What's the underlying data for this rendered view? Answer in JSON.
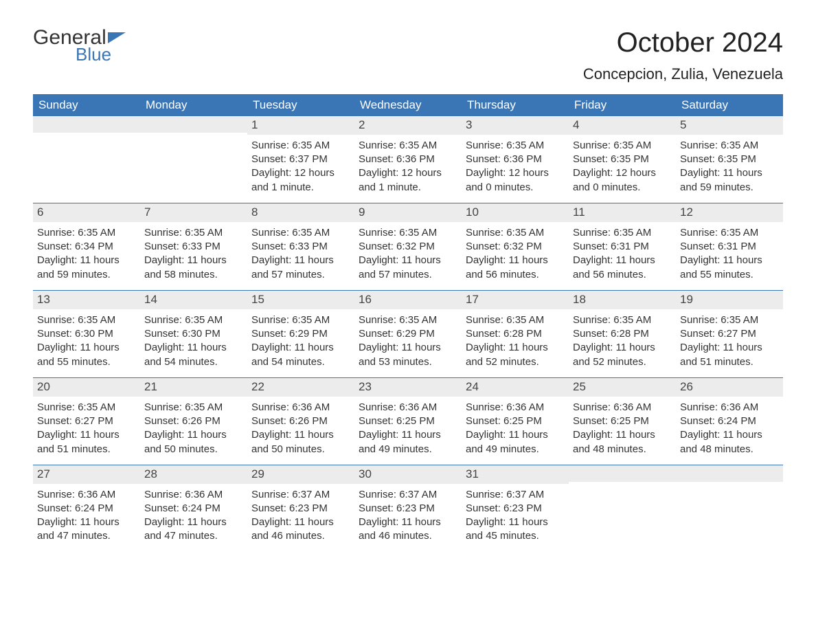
{
  "logo": {
    "text_general": "General",
    "text_blue": "Blue"
  },
  "header": {
    "month_title": "October 2024",
    "location": "Concepcion, Zulia, Venezuela"
  },
  "colors": {
    "header_bg": "#3a75b6",
    "daynum_bg": "#ececec",
    "page_bg": "#ffffff",
    "text": "#333333"
  },
  "weekday_labels": [
    "Sunday",
    "Monday",
    "Tuesday",
    "Wednesday",
    "Thursday",
    "Friday",
    "Saturday"
  ],
  "weeks": [
    [
      {
        "blank": true
      },
      {
        "blank": true
      },
      {
        "n": "1",
        "sunrise": "Sunrise: 6:35 AM",
        "sunset": "Sunset: 6:37 PM",
        "d1": "Daylight: 12 hours",
        "d2": "and 1 minute."
      },
      {
        "n": "2",
        "sunrise": "Sunrise: 6:35 AM",
        "sunset": "Sunset: 6:36 PM",
        "d1": "Daylight: 12 hours",
        "d2": "and 1 minute."
      },
      {
        "n": "3",
        "sunrise": "Sunrise: 6:35 AM",
        "sunset": "Sunset: 6:36 PM",
        "d1": "Daylight: 12 hours",
        "d2": "and 0 minutes."
      },
      {
        "n": "4",
        "sunrise": "Sunrise: 6:35 AM",
        "sunset": "Sunset: 6:35 PM",
        "d1": "Daylight: 12 hours",
        "d2": "and 0 minutes."
      },
      {
        "n": "5",
        "sunrise": "Sunrise: 6:35 AM",
        "sunset": "Sunset: 6:35 PM",
        "d1": "Daylight: 11 hours",
        "d2": "and 59 minutes."
      }
    ],
    [
      {
        "n": "6",
        "sunrise": "Sunrise: 6:35 AM",
        "sunset": "Sunset: 6:34 PM",
        "d1": "Daylight: 11 hours",
        "d2": "and 59 minutes."
      },
      {
        "n": "7",
        "sunrise": "Sunrise: 6:35 AM",
        "sunset": "Sunset: 6:33 PM",
        "d1": "Daylight: 11 hours",
        "d2": "and 58 minutes."
      },
      {
        "n": "8",
        "sunrise": "Sunrise: 6:35 AM",
        "sunset": "Sunset: 6:33 PM",
        "d1": "Daylight: 11 hours",
        "d2": "and 57 minutes."
      },
      {
        "n": "9",
        "sunrise": "Sunrise: 6:35 AM",
        "sunset": "Sunset: 6:32 PM",
        "d1": "Daylight: 11 hours",
        "d2": "and 57 minutes."
      },
      {
        "n": "10",
        "sunrise": "Sunrise: 6:35 AM",
        "sunset": "Sunset: 6:32 PM",
        "d1": "Daylight: 11 hours",
        "d2": "and 56 minutes."
      },
      {
        "n": "11",
        "sunrise": "Sunrise: 6:35 AM",
        "sunset": "Sunset: 6:31 PM",
        "d1": "Daylight: 11 hours",
        "d2": "and 56 minutes."
      },
      {
        "n": "12",
        "sunrise": "Sunrise: 6:35 AM",
        "sunset": "Sunset: 6:31 PM",
        "d1": "Daylight: 11 hours",
        "d2": "and 55 minutes."
      }
    ],
    [
      {
        "n": "13",
        "sunrise": "Sunrise: 6:35 AM",
        "sunset": "Sunset: 6:30 PM",
        "d1": "Daylight: 11 hours",
        "d2": "and 55 minutes."
      },
      {
        "n": "14",
        "sunrise": "Sunrise: 6:35 AM",
        "sunset": "Sunset: 6:30 PM",
        "d1": "Daylight: 11 hours",
        "d2": "and 54 minutes."
      },
      {
        "n": "15",
        "sunrise": "Sunrise: 6:35 AM",
        "sunset": "Sunset: 6:29 PM",
        "d1": "Daylight: 11 hours",
        "d2": "and 54 minutes."
      },
      {
        "n": "16",
        "sunrise": "Sunrise: 6:35 AM",
        "sunset": "Sunset: 6:29 PM",
        "d1": "Daylight: 11 hours",
        "d2": "and 53 minutes."
      },
      {
        "n": "17",
        "sunrise": "Sunrise: 6:35 AM",
        "sunset": "Sunset: 6:28 PM",
        "d1": "Daylight: 11 hours",
        "d2": "and 52 minutes."
      },
      {
        "n": "18",
        "sunrise": "Sunrise: 6:35 AM",
        "sunset": "Sunset: 6:28 PM",
        "d1": "Daylight: 11 hours",
        "d2": "and 52 minutes."
      },
      {
        "n": "19",
        "sunrise": "Sunrise: 6:35 AM",
        "sunset": "Sunset: 6:27 PM",
        "d1": "Daylight: 11 hours",
        "d2": "and 51 minutes."
      }
    ],
    [
      {
        "n": "20",
        "sunrise": "Sunrise: 6:35 AM",
        "sunset": "Sunset: 6:27 PM",
        "d1": "Daylight: 11 hours",
        "d2": "and 51 minutes."
      },
      {
        "n": "21",
        "sunrise": "Sunrise: 6:35 AM",
        "sunset": "Sunset: 6:26 PM",
        "d1": "Daylight: 11 hours",
        "d2": "and 50 minutes."
      },
      {
        "n": "22",
        "sunrise": "Sunrise: 6:36 AM",
        "sunset": "Sunset: 6:26 PM",
        "d1": "Daylight: 11 hours",
        "d2": "and 50 minutes."
      },
      {
        "n": "23",
        "sunrise": "Sunrise: 6:36 AM",
        "sunset": "Sunset: 6:25 PM",
        "d1": "Daylight: 11 hours",
        "d2": "and 49 minutes."
      },
      {
        "n": "24",
        "sunrise": "Sunrise: 6:36 AM",
        "sunset": "Sunset: 6:25 PM",
        "d1": "Daylight: 11 hours",
        "d2": "and 49 minutes."
      },
      {
        "n": "25",
        "sunrise": "Sunrise: 6:36 AM",
        "sunset": "Sunset: 6:25 PM",
        "d1": "Daylight: 11 hours",
        "d2": "and 48 minutes."
      },
      {
        "n": "26",
        "sunrise": "Sunrise: 6:36 AM",
        "sunset": "Sunset: 6:24 PM",
        "d1": "Daylight: 11 hours",
        "d2": "and 48 minutes."
      }
    ],
    [
      {
        "n": "27",
        "sunrise": "Sunrise: 6:36 AM",
        "sunset": "Sunset: 6:24 PM",
        "d1": "Daylight: 11 hours",
        "d2": "and 47 minutes."
      },
      {
        "n": "28",
        "sunrise": "Sunrise: 6:36 AM",
        "sunset": "Sunset: 6:24 PM",
        "d1": "Daylight: 11 hours",
        "d2": "and 47 minutes."
      },
      {
        "n": "29",
        "sunrise": "Sunrise: 6:37 AM",
        "sunset": "Sunset: 6:23 PM",
        "d1": "Daylight: 11 hours",
        "d2": "and 46 minutes."
      },
      {
        "n": "30",
        "sunrise": "Sunrise: 6:37 AM",
        "sunset": "Sunset: 6:23 PM",
        "d1": "Daylight: 11 hours",
        "d2": "and 46 minutes."
      },
      {
        "n": "31",
        "sunrise": "Sunrise: 6:37 AM",
        "sunset": "Sunset: 6:23 PM",
        "d1": "Daylight: 11 hours",
        "d2": "and 45 minutes."
      },
      {
        "blank": true
      },
      {
        "blank": true
      }
    ]
  ]
}
